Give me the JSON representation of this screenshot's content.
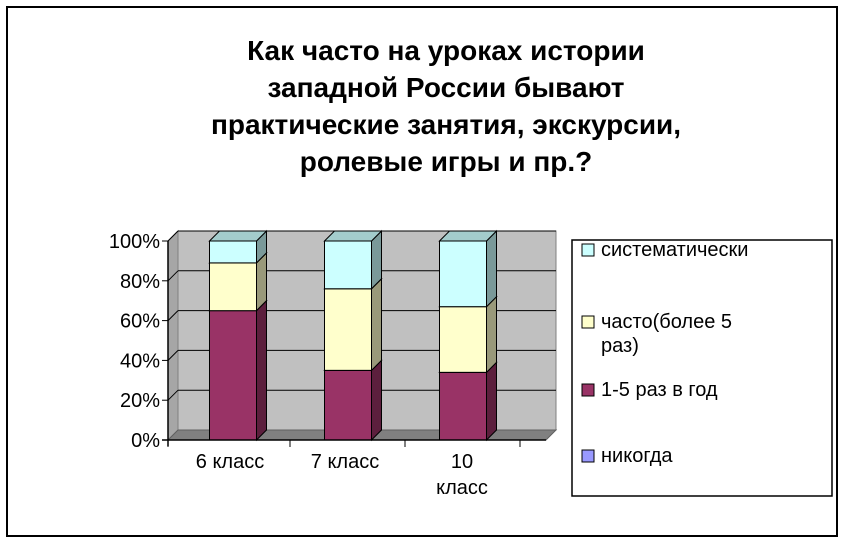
{
  "chart_data": {
    "type": "bar",
    "stacked": true,
    "three_d": true,
    "title_lines": [
      "Как часто на уроках истории",
      "западной России бывают",
      "практические занятия, экскурсии,",
      "ролевые игры и пр.?"
    ],
    "categories": [
      {
        "lines": [
          "6 класс"
        ]
      },
      {
        "lines": [
          "7 класс"
        ]
      },
      {
        "lines": [
          "10",
          "класс"
        ]
      }
    ],
    "y_ticks": [
      "0%",
      "20%",
      "40%",
      "60%",
      "80%",
      "100%"
    ],
    "ylim": [
      0,
      100
    ],
    "grid": true,
    "legend_position": "right",
    "series": [
      {
        "name_lines": [
          "никогда"
        ],
        "values": [
          0,
          0,
          0
        ],
        "color": "#9999ff"
      },
      {
        "name_lines": [
          "1-5 раз в год"
        ],
        "values": [
          65,
          35,
          34
        ],
        "color": "#993366"
      },
      {
        "name_lines": [
          "часто(более 5",
          "раз)"
        ],
        "values": [
          24,
          41,
          33
        ],
        "color": "#ffffcc"
      },
      {
        "name_lines": [
          "систематически"
        ],
        "values": [
          11,
          24,
          33
        ],
        "color": "#ccffff"
      }
    ]
  }
}
